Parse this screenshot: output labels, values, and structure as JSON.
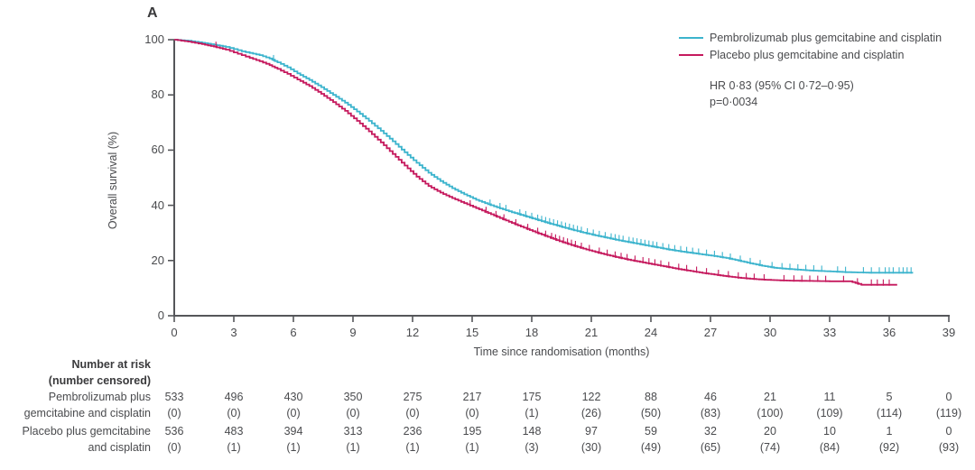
{
  "panel_label": "A",
  "legend": {
    "items": [
      {
        "label": "Pembrolizumab plus gemcitabine and cisplatin",
        "color": "#3cb4cd"
      },
      {
        "label": "Placebo plus gemcitabine and cisplatin",
        "color": "#c5195d"
      }
    ]
  },
  "stats": {
    "hr_line": "HR 0·83 (95% CI 0·72–0·95)",
    "p_line": "p=0·0034"
  },
  "colors": {
    "axis": "#55565a",
    "text": "#4a4b4e",
    "pembrolizumab": "#3cb4cd",
    "placebo": "#c5195d"
  },
  "chart_data": {
    "type": "line",
    "subtype": "kaplan-meier-step",
    "title": "",
    "xlabel": "Time since randomisation (months)",
    "ylabel": "Overall survival (%)",
    "xlim": [
      0,
      39
    ],
    "ylim": [
      0,
      100
    ],
    "x_ticks": [
      0,
      3,
      6,
      9,
      12,
      15,
      18,
      21,
      24,
      27,
      30,
      33,
      36,
      39
    ],
    "y_ticks": [
      0,
      20,
      40,
      60,
      80,
      100
    ],
    "grid": false,
    "legend_position": "top-right",
    "annotations": [
      "HR 0·83 (95% CI 0·72–0·95)",
      "p=0·0034"
    ],
    "series": [
      {
        "name": "Pembrolizumab plus gemcitabine and cisplatin",
        "color": "#3cb4cd",
        "points": [
          [
            0,
            100
          ],
          [
            0.7,
            99.6
          ],
          [
            1.4,
            98.9
          ],
          [
            2,
            98.2
          ],
          [
            2.6,
            97.4
          ],
          [
            3,
            96.6
          ],
          [
            3.4,
            95.8
          ],
          [
            3.8,
            95.2
          ],
          [
            4.3,
            94.4
          ],
          [
            4.8,
            93.2
          ],
          [
            5.2,
            91.8
          ],
          [
            5.7,
            90
          ],
          [
            6.2,
            87.8
          ],
          [
            6.8,
            85.4
          ],
          [
            7.4,
            82.8
          ],
          [
            8,
            80
          ],
          [
            8.6,
            77.2
          ],
          [
            9.2,
            74
          ],
          [
            9.8,
            70.6
          ],
          [
            10.4,
            67
          ],
          [
            11,
            63.2
          ],
          [
            11.6,
            59.2
          ],
          [
            12.2,
            55.4
          ],
          [
            12.8,
            51.8
          ],
          [
            13.4,
            48.8
          ],
          [
            14,
            46.2
          ],
          [
            14.6,
            44
          ],
          [
            15.2,
            42
          ],
          [
            15.8,
            40.4
          ],
          [
            16.4,
            38.9
          ],
          [
            17,
            37.5
          ],
          [
            17.6,
            36.2
          ],
          [
            18.2,
            34.9
          ],
          [
            18.8,
            33.6
          ],
          [
            19.4,
            32.4
          ],
          [
            20,
            31.2
          ],
          [
            20.6,
            30.1
          ],
          [
            21.2,
            29.1
          ],
          [
            21.8,
            28.2
          ],
          [
            22.4,
            27.3
          ],
          [
            23,
            26.5
          ],
          [
            23.6,
            25.7
          ],
          [
            24.2,
            24.9
          ],
          [
            24.8,
            24.1
          ],
          [
            25.4,
            23.4
          ],
          [
            26,
            22.8
          ],
          [
            26.6,
            22.2
          ],
          [
            27.2,
            21.6
          ],
          [
            27.8,
            20.9
          ],
          [
            28.4,
            20
          ],
          [
            29,
            19
          ],
          [
            29.6,
            18.1
          ],
          [
            30.2,
            17.4
          ],
          [
            30.8,
            17
          ],
          [
            31.4,
            16.7
          ],
          [
            32,
            16.4
          ],
          [
            32.6,
            16.2
          ],
          [
            33.2,
            16
          ],
          [
            33.8,
            15.8
          ],
          [
            34.4,
            15.7
          ],
          [
            35,
            15.6
          ],
          [
            37.2,
            15.6
          ]
        ],
        "censor_marks": [
          5.0,
          15.9,
          16.4,
          16.7,
          17.4,
          17.7,
          18.0,
          18.3,
          18.5,
          18.7,
          18.9,
          19.1,
          19.3,
          19.5,
          19.7,
          19.9,
          20.1,
          20.3,
          20.5,
          20.8,
          21.1,
          21.4,
          21.7,
          22.0,
          22.2,
          22.4,
          22.6,
          22.9,
          23.1,
          23.3,
          23.5,
          23.7,
          23.9,
          24.1,
          24.3,
          24.6,
          24.9,
          25.2,
          25.5,
          25.8,
          26.1,
          26.4,
          26.8,
          27.2,
          27.6,
          28.0,
          28.5,
          29.0,
          29.5,
          30.1,
          30.6,
          31.0,
          31.4,
          31.8,
          32.2,
          32.6,
          33.4,
          33.8,
          34.7,
          35.1,
          35.5,
          35.8,
          36.0,
          36.2,
          36.5,
          36.7,
          36.9,
          37.1
        ]
      },
      {
        "name": "Placebo plus gemcitabine and cisplatin",
        "color": "#c5195d",
        "points": [
          [
            0,
            100
          ],
          [
            0.7,
            99.3
          ],
          [
            1.4,
            98.4
          ],
          [
            2,
            97.5
          ],
          [
            2.6,
            96.4
          ],
          [
            3,
            95.4
          ],
          [
            3.4,
            94.4
          ],
          [
            3.8,
            93.4
          ],
          [
            4.3,
            92.2
          ],
          [
            4.8,
            90.8
          ],
          [
            5.2,
            89.4
          ],
          [
            5.7,
            87.6
          ],
          [
            6.2,
            85.6
          ],
          [
            6.8,
            83.2
          ],
          [
            7.4,
            80.4
          ],
          [
            8,
            77.4
          ],
          [
            8.6,
            74.2
          ],
          [
            9.2,
            70.6
          ],
          [
            9.8,
            66.8
          ],
          [
            10.4,
            62.8
          ],
          [
            11,
            58.6
          ],
          [
            11.6,
            54.4
          ],
          [
            12.2,
            50.4
          ],
          [
            12.8,
            47
          ],
          [
            13.4,
            44.6
          ],
          [
            14,
            42.6
          ],
          [
            14.6,
            40.8
          ],
          [
            15.2,
            39
          ],
          [
            15.8,
            37.2
          ],
          [
            16.4,
            35.4
          ],
          [
            17,
            33.6
          ],
          [
            17.6,
            31.9
          ],
          [
            18.2,
            30.2
          ],
          [
            18.8,
            28.6
          ],
          [
            19.4,
            27
          ],
          [
            20,
            25.6
          ],
          [
            20.6,
            24.3
          ],
          [
            21.2,
            23.1
          ],
          [
            21.8,
            22
          ],
          [
            22.4,
            21
          ],
          [
            23,
            20.1
          ],
          [
            23.6,
            19.3
          ],
          [
            24.2,
            18.5
          ],
          [
            24.8,
            17.7
          ],
          [
            25.4,
            16.9
          ],
          [
            26,
            16.2
          ],
          [
            26.6,
            15.5
          ],
          [
            27.2,
            14.9
          ],
          [
            27.8,
            14.3
          ],
          [
            28.4,
            13.8
          ],
          [
            29,
            13.4
          ],
          [
            29.6,
            13.1
          ],
          [
            30.2,
            12.9
          ],
          [
            31,
            12.7
          ],
          [
            32,
            12.6
          ],
          [
            33,
            12.5
          ],
          [
            34,
            12.5
          ],
          [
            34.6,
            11.2
          ],
          [
            36.4,
            11.2
          ]
        ],
        "censor_marks": [
          2.1,
          14.9,
          15.7,
          16.2,
          16.6,
          17.2,
          17.8,
          18.3,
          18.7,
          19.0,
          19.2,
          19.4,
          19.6,
          19.8,
          20.0,
          20.2,
          20.5,
          20.9,
          21.4,
          21.8,
          22.2,
          22.5,
          22.8,
          23.2,
          23.6,
          23.9,
          24.2,
          24.5,
          24.9,
          25.4,
          25.8,
          26.3,
          26.8,
          27.4,
          27.9,
          28.4,
          28.8,
          29.2,
          29.7,
          30.7,
          31.2,
          31.6,
          32.0,
          32.4,
          32.8,
          33.7,
          34.4,
          35.1,
          35.4,
          35.7,
          36.0
        ]
      }
    ]
  },
  "risk_table": {
    "header_line1": "Number at risk",
    "header_line2": "(number censored)",
    "time_points": [
      0,
      3,
      6,
      9,
      12,
      15,
      18,
      21,
      24,
      27,
      30,
      33,
      36,
      39
    ],
    "rows": [
      {
        "label_line1": "Pembrolizumab plus",
        "label_line2": "gemcitabine and cisplatin",
        "at_risk": [
          "533",
          "496",
          "430",
          "350",
          "275",
          "217",
          "175",
          "122",
          "88",
          "46",
          "21",
          "11",
          "5",
          "0"
        ],
        "censored": [
          "(0)",
          "(0)",
          "(0)",
          "(0)",
          "(0)",
          "(0)",
          "(1)",
          "(26)",
          "(50)",
          "(83)",
          "(100)",
          "(109)",
          "(114)",
          "(119)"
        ]
      },
      {
        "label_line1": "Placebo plus gemcitabine",
        "label_line2": "and cisplatin",
        "at_risk": [
          "536",
          "483",
          "394",
          "313",
          "236",
          "195",
          "148",
          "97",
          "59",
          "32",
          "20",
          "10",
          "1",
          "0"
        ],
        "censored": [
          "(0)",
          "(1)",
          "(1)",
          "(1)",
          "(1)",
          "(1)",
          "(3)",
          "(30)",
          "(49)",
          "(65)",
          "(74)",
          "(84)",
          "(92)",
          "(93)"
        ]
      }
    ]
  }
}
